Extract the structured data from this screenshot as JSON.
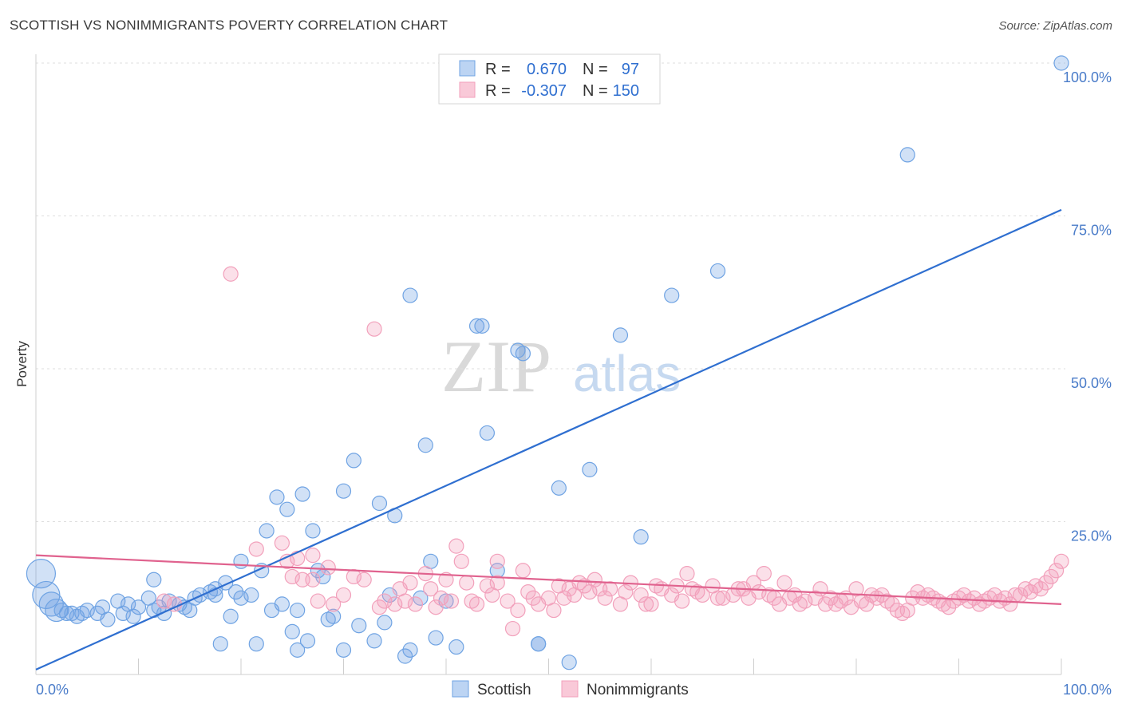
{
  "title": "SCOTTISH VS NONIMMIGRANTS POVERTY CORRELATION CHART",
  "source": "Source: ZipAtlas.com",
  "watermark": {
    "zip": "ZIP",
    "atlas": "atlas"
  },
  "chart_data": {
    "type": "scatter",
    "title": "SCOTTISH VS NONIMMIGRANTS POVERTY CORRELATION CHART",
    "xlabel": "",
    "ylabel": "Poverty",
    "xlim": [
      0,
      100
    ],
    "ylim": [
      0,
      100
    ],
    "x_tick_labels": [
      "0.0%",
      "100.0%"
    ],
    "y_ticks": [
      25,
      50,
      75,
      100
    ],
    "y_tick_labels": [
      "25.0%",
      "50.0%",
      "75.0%",
      "100.0%"
    ],
    "grid": "horizontal dashed",
    "legend_placement": "top-center",
    "legend": {
      "row1": {
        "r_label": "R =",
        "r_value": "0.670",
        "n_label": "N =",
        "n_value": "97"
      },
      "row2": {
        "r_label": "R =",
        "r_value": "-0.307",
        "n_label": "N =",
        "n_value": "150"
      }
    },
    "series": [
      {
        "name": "Scottish",
        "color": "#6fa3e3",
        "line_color": "#2f6fd0",
        "trend": {
          "x": [
            0,
            100
          ],
          "y": [
            0.8,
            76
          ]
        },
        "points": [
          [
            0.5,
            16.5
          ],
          [
            1,
            13
          ],
          [
            1.5,
            11.5
          ],
          [
            2,
            10.5
          ],
          [
            2.5,
            10.5
          ],
          [
            3,
            10
          ],
          [
            3.5,
            10
          ],
          [
            4,
            9.5
          ],
          [
            4.5,
            10
          ],
          [
            5,
            10.5
          ],
          [
            6,
            10
          ],
          [
            6.5,
            11
          ],
          [
            7,
            9
          ],
          [
            8,
            12
          ],
          [
            8.5,
            10
          ],
          [
            9,
            11.5
          ],
          [
            9.5,
            9.5
          ],
          [
            10,
            11
          ],
          [
            11,
            12.5
          ],
          [
            11.5,
            10.5
          ],
          [
            11.5,
            15.5
          ],
          [
            12,
            11
          ],
          [
            12.5,
            10
          ],
          [
            13,
            12
          ],
          [
            14,
            11.5
          ],
          [
            14.5,
            11
          ],
          [
            15,
            10.5
          ],
          [
            15.5,
            12.5
          ],
          [
            16,
            13
          ],
          [
            17,
            13.5
          ],
          [
            17.5,
            14
          ],
          [
            17.5,
            13
          ],
          [
            18,
            5
          ],
          [
            18.5,
            15
          ],
          [
            19,
            9.5
          ],
          [
            19.5,
            13.5
          ],
          [
            20,
            12.5
          ],
          [
            20,
            18.5
          ],
          [
            21,
            13
          ],
          [
            21.5,
            5
          ],
          [
            22,
            17
          ],
          [
            22.5,
            23.5
          ],
          [
            23,
            10.5
          ],
          [
            23.5,
            29
          ],
          [
            24,
            11.5
          ],
          [
            24.5,
            27
          ],
          [
            25,
            7
          ],
          [
            25.5,
            10.5
          ],
          [
            25.5,
            4
          ],
          [
            26,
            29.5
          ],
          [
            26.5,
            5.5
          ],
          [
            27,
            23.5
          ],
          [
            27.5,
            17
          ],
          [
            28,
            16
          ],
          [
            28.5,
            9
          ],
          [
            29,
            9.5
          ],
          [
            30,
            30
          ],
          [
            30,
            4
          ],
          [
            31,
            35
          ],
          [
            31.5,
            8
          ],
          [
            33,
            5.5
          ],
          [
            33.5,
            28
          ],
          [
            34,
            8.5
          ],
          [
            34.5,
            13
          ],
          [
            35,
            26
          ],
          [
            36,
            3
          ],
          [
            36.5,
            62
          ],
          [
            36.5,
            4
          ],
          [
            37.5,
            12.5
          ],
          [
            38,
            37.5
          ],
          [
            38.5,
            18.5
          ],
          [
            39,
            6
          ],
          [
            40,
            12
          ],
          [
            41,
            4.5
          ],
          [
            43,
            57
          ],
          [
            43.5,
            57
          ],
          [
            44,
            39.5
          ],
          [
            45,
            17
          ],
          [
            47,
            53
          ],
          [
            47.5,
            52.5
          ],
          [
            49,
            5
          ],
          [
            49,
            5
          ],
          [
            51,
            30.5
          ],
          [
            52,
            2
          ],
          [
            54,
            33.5
          ],
          [
            57,
            55.5
          ],
          [
            59,
            22.5
          ],
          [
            62,
            62
          ],
          [
            66.5,
            66
          ],
          [
            85,
            85
          ],
          [
            100,
            100
          ]
        ]
      },
      {
        "name": "Nonimmigrants",
        "color": "#f2a0bb",
        "line_color": "#e0628e",
        "trend": {
          "x": [
            0,
            100
          ],
          "y": [
            19.5,
            11.5
          ]
        },
        "points": [
          [
            12.5,
            12
          ],
          [
            13.5,
            11.5
          ],
          [
            19,
            65.5
          ],
          [
            21.5,
            20.5
          ],
          [
            24,
            21.5
          ],
          [
            24.5,
            18.5
          ],
          [
            25,
            16
          ],
          [
            25.5,
            19
          ],
          [
            26,
            15.5
          ],
          [
            27,
            19.5
          ],
          [
            27,
            15.5
          ],
          [
            27.5,
            12
          ],
          [
            28.5,
            17.5
          ],
          [
            29,
            11.5
          ],
          [
            30,
            13
          ],
          [
            31,
            16
          ],
          [
            32,
            15.5
          ],
          [
            33,
            56.5
          ],
          [
            33.5,
            11
          ],
          [
            34,
            12
          ],
          [
            35,
            11.5
          ],
          [
            35.5,
            14
          ],
          [
            36,
            12
          ],
          [
            36.5,
            15
          ],
          [
            37,
            11.5
          ],
          [
            38,
            16.5
          ],
          [
            38.5,
            14
          ],
          [
            39,
            11
          ],
          [
            39.5,
            12.5
          ],
          [
            40,
            15.5
          ],
          [
            40.5,
            12
          ],
          [
            41,
            21
          ],
          [
            41.5,
            18.5
          ],
          [
            42,
            15
          ],
          [
            42.5,
            12
          ],
          [
            43,
            11.5
          ],
          [
            44,
            14.5
          ],
          [
            44.5,
            13
          ],
          [
            45,
            18.5
          ],
          [
            45,
            15
          ],
          [
            46,
            12
          ],
          [
            46.5,
            7.5
          ],
          [
            47,
            10.5
          ],
          [
            47.5,
            17
          ],
          [
            48,
            13.5
          ],
          [
            48.5,
            12.5
          ],
          [
            49,
            11.5
          ],
          [
            50,
            12.5
          ],
          [
            50.5,
            10.5
          ],
          [
            51,
            14.5
          ],
          [
            51.5,
            12.5
          ],
          [
            52,
            14
          ],
          [
            52.5,
            13
          ],
          [
            53,
            15
          ],
          [
            53.5,
            14.5
          ],
          [
            54,
            13.5
          ],
          [
            54.5,
            15.5
          ],
          [
            55,
            14
          ],
          [
            55.5,
            12.5
          ],
          [
            56,
            14
          ],
          [
            57,
            11.5
          ],
          [
            57.5,
            13.5
          ],
          [
            58,
            15
          ],
          [
            59,
            13
          ],
          [
            59.5,
            11.5
          ],
          [
            60,
            11.5
          ],
          [
            60.5,
            14.5
          ],
          [
            61,
            14
          ],
          [
            62,
            13
          ],
          [
            62.5,
            14.5
          ],
          [
            63,
            12
          ],
          [
            63.5,
            16.5
          ],
          [
            64,
            14
          ],
          [
            64.5,
            13.5
          ],
          [
            65,
            13
          ],
          [
            66,
            14.5
          ],
          [
            66.5,
            12.5
          ],
          [
            67,
            12.5
          ],
          [
            68,
            13
          ],
          [
            68.5,
            14
          ],
          [
            69,
            14
          ],
          [
            69.5,
            12.5
          ],
          [
            70,
            15
          ],
          [
            70.5,
            13.5
          ],
          [
            71,
            16.5
          ],
          [
            71.5,
            13
          ],
          [
            72,
            12.5
          ],
          [
            72.5,
            11.5
          ],
          [
            73,
            15
          ],
          [
            73.5,
            12.5
          ],
          [
            74,
            13
          ],
          [
            74.5,
            11.5
          ],
          [
            75,
            12
          ],
          [
            76,
            12.5
          ],
          [
            76.5,
            14
          ],
          [
            77,
            11.5
          ],
          [
            77.5,
            12.5
          ],
          [
            78,
            11.5
          ],
          [
            78.5,
            12
          ],
          [
            79,
            12.5
          ],
          [
            79.5,
            11
          ],
          [
            80,
            14
          ],
          [
            80.5,
            12
          ],
          [
            81,
            11.5
          ],
          [
            81.5,
            13
          ],
          [
            82,
            12.5
          ],
          [
            82.5,
            13
          ],
          [
            83,
            12
          ],
          [
            83.5,
            11.5
          ],
          [
            84,
            10.5
          ],
          [
            84.5,
            10
          ],
          [
            85,
            10.5
          ],
          [
            85.5,
            12.5
          ],
          [
            86,
            13.5
          ],
          [
            86.5,
            12.5
          ],
          [
            87,
            13
          ],
          [
            87.5,
            12.5
          ],
          [
            88,
            12
          ],
          [
            88.5,
            11.5
          ],
          [
            89,
            11
          ],
          [
            89.5,
            12
          ],
          [
            90,
            12.5
          ],
          [
            90.5,
            13
          ],
          [
            91,
            12
          ],
          [
            91.5,
            12.5
          ],
          [
            92,
            11.5
          ],
          [
            92.5,
            12
          ],
          [
            93,
            12.5
          ],
          [
            93.5,
            13
          ],
          [
            94,
            12
          ],
          [
            94.5,
            12.5
          ],
          [
            95,
            11.5
          ],
          [
            95.5,
            13
          ],
          [
            96,
            13
          ],
          [
            96.5,
            14
          ],
          [
            97,
            13.5
          ],
          [
            97.5,
            14.5
          ],
          [
            98,
            14
          ],
          [
            98.5,
            15
          ],
          [
            99,
            16
          ],
          [
            99.5,
            17
          ],
          [
            100,
            18.5
          ]
        ]
      }
    ]
  }
}
